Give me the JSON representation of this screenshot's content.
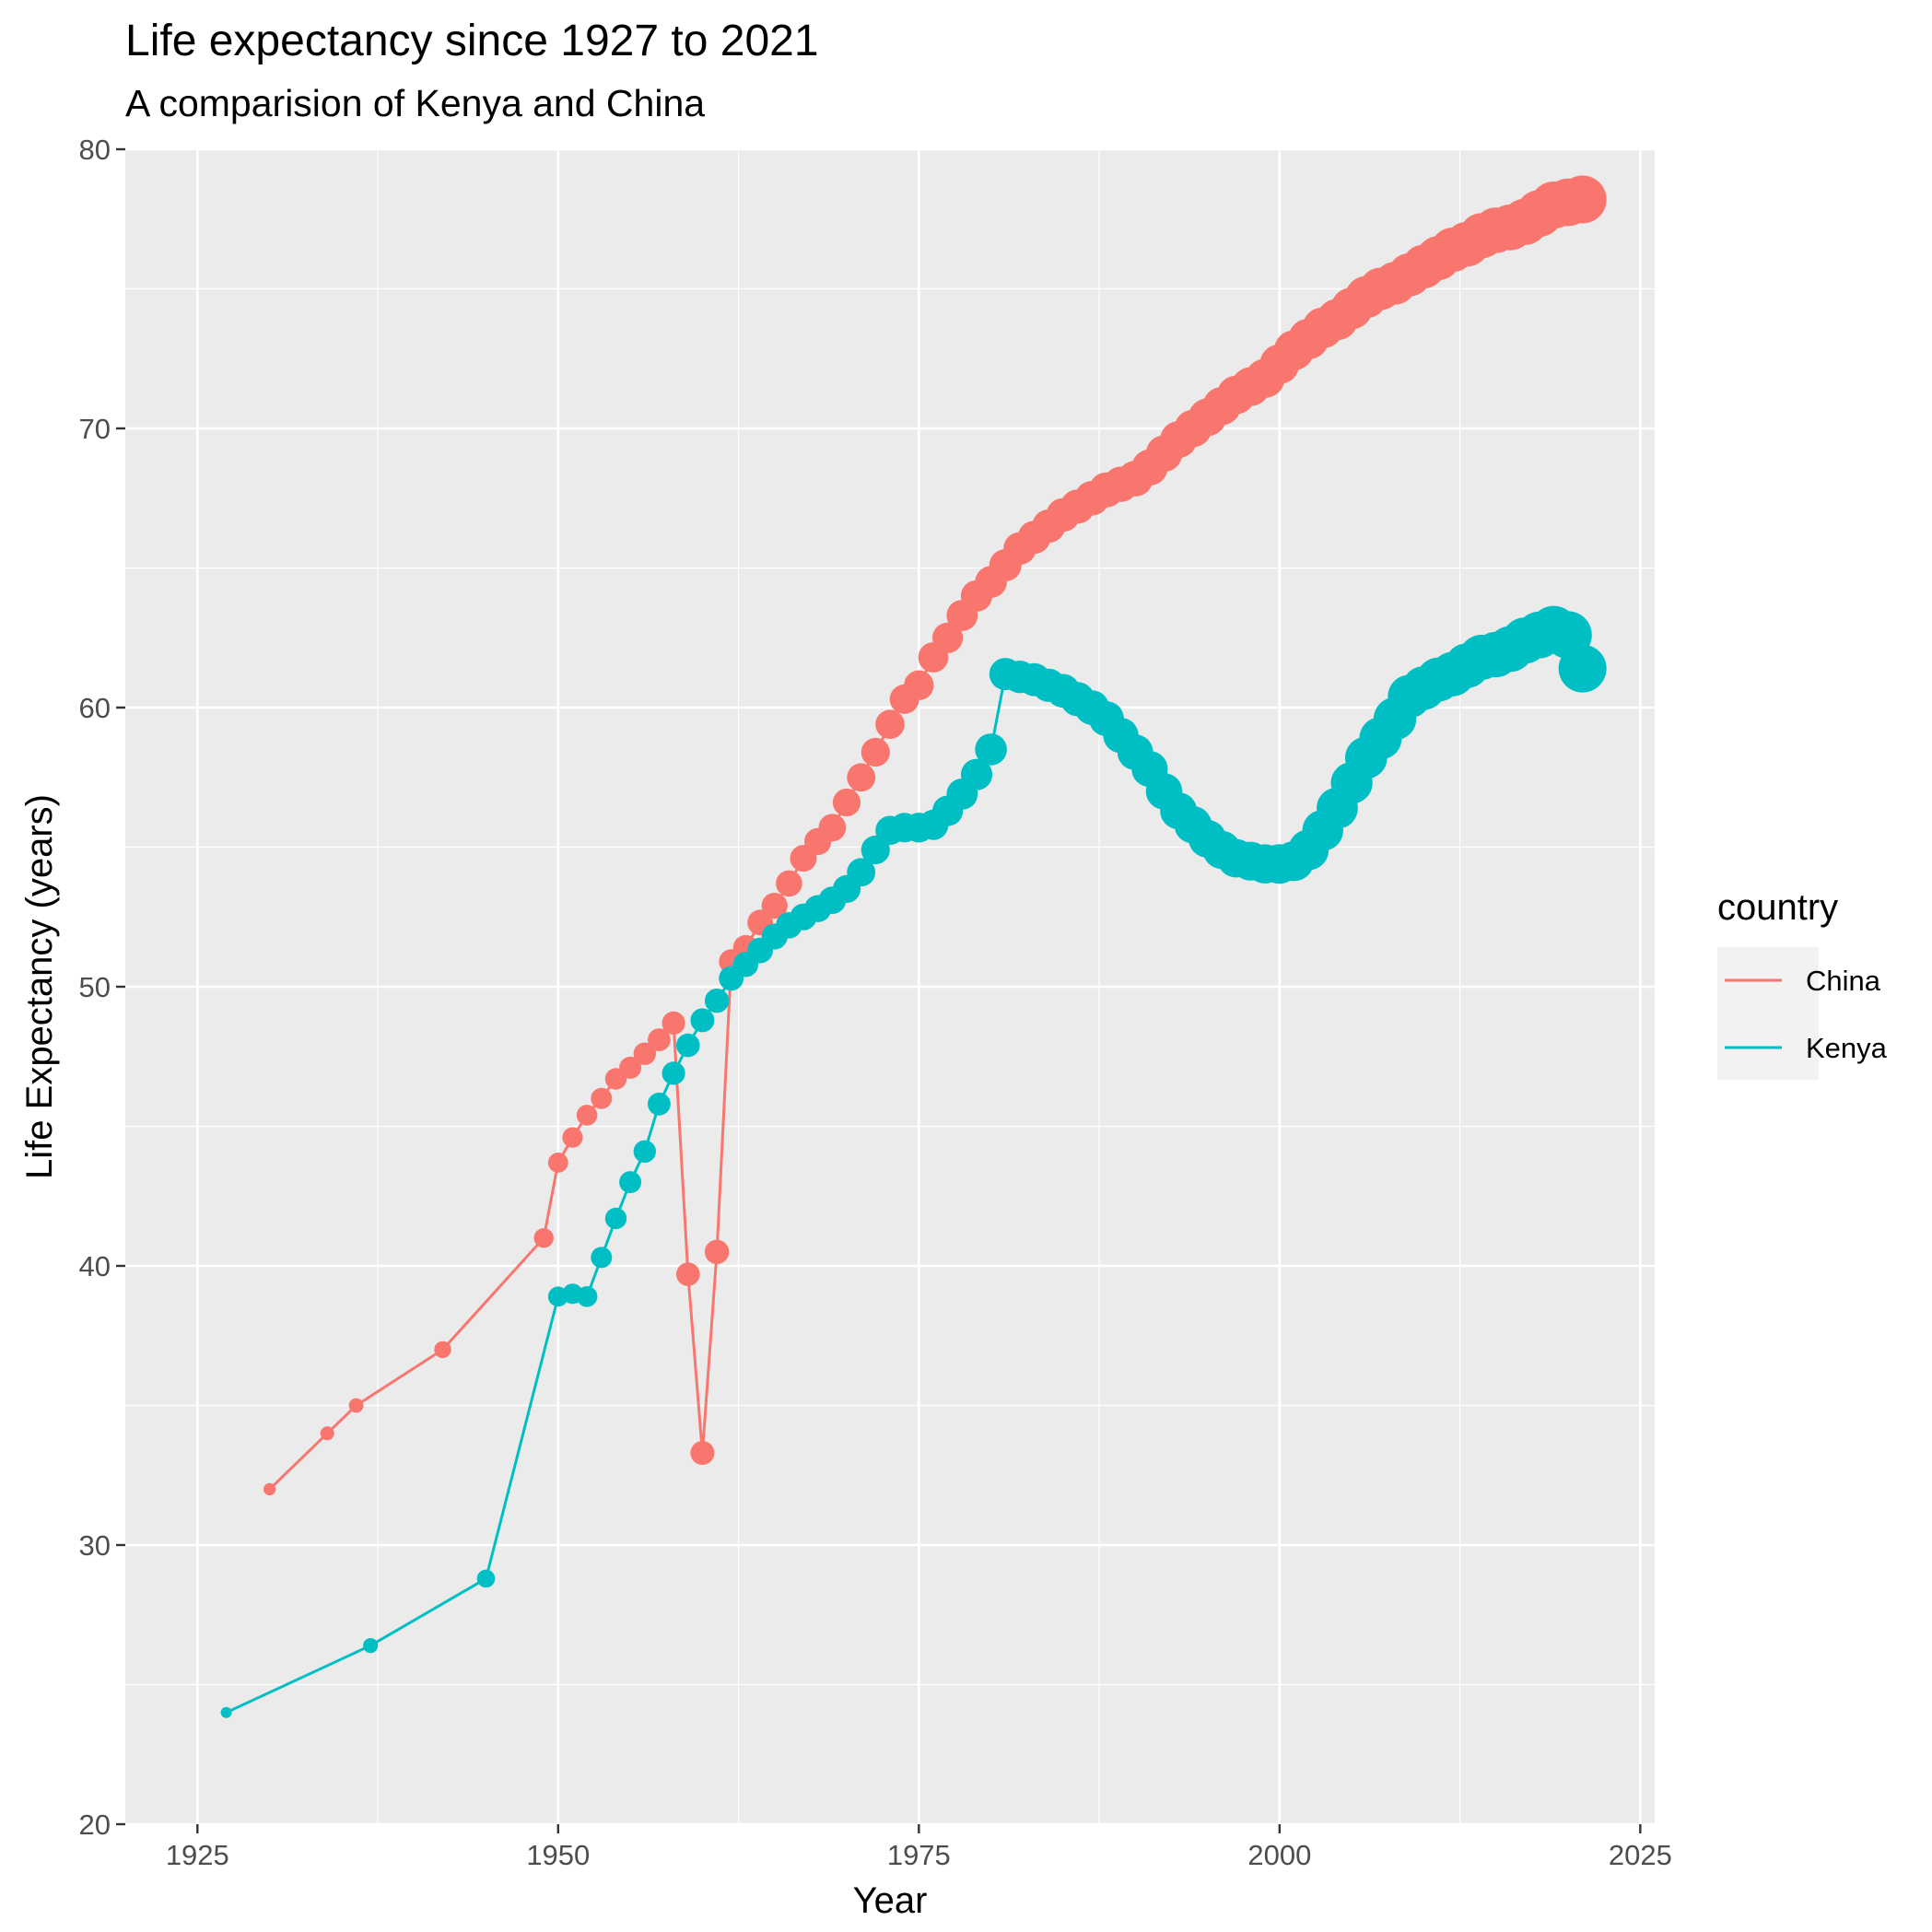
{
  "chart_data": {
    "type": "line",
    "title": "Life expectancy since 1927 to 2021",
    "subtitle": "A comparision of Kenya and China",
    "xlabel": "Year",
    "ylabel": "Life Expectancy (years)",
    "xlim": [
      1920,
      2026
    ],
    "ylim": [
      20,
      80
    ],
    "x_ticks": [
      1925,
      1950,
      1975,
      2000,
      2025
    ],
    "y_ticks": [
      20,
      30,
      40,
      50,
      60,
      70,
      80
    ],
    "grid": true,
    "point_size_encodes": "year",
    "legend": {
      "title": "country",
      "position": "right"
    },
    "series": [
      {
        "name": "China",
        "color": "#F8766D",
        "x": [
          1930,
          1934,
          1936,
          1942,
          1949,
          1950,
          1951,
          1952,
          1953,
          1954,
          1955,
          1956,
          1957,
          1958,
          1959,
          1960,
          1961,
          1962,
          1963,
          1964,
          1965,
          1966,
          1967,
          1968,
          1969,
          1970,
          1971,
          1972,
          1973,
          1974,
          1975,
          1976,
          1977,
          1978,
          1979,
          1980,
          1981,
          1982,
          1983,
          1984,
          1985,
          1986,
          1987,
          1988,
          1989,
          1990,
          1991,
          1992,
          1993,
          1994,
          1995,
          1996,
          1997,
          1998,
          1999,
          2000,
          2001,
          2002,
          2003,
          2004,
          2005,
          2006,
          2007,
          2008,
          2009,
          2010,
          2011,
          2012,
          2013,
          2014,
          2015,
          2016,
          2017,
          2018,
          2019,
          2020,
          2021
        ],
        "y": [
          32.0,
          34.0,
          35.0,
          37.0,
          41.0,
          43.7,
          44.6,
          45.4,
          46.0,
          46.7,
          47.1,
          47.6,
          48.1,
          48.7,
          39.7,
          33.3,
          40.5,
          50.9,
          51.4,
          52.3,
          52.9,
          53.7,
          54.6,
          55.2,
          55.7,
          56.6,
          57.5,
          58.4,
          59.4,
          60.3,
          60.8,
          61.8,
          62.5,
          63.3,
          64.0,
          64.5,
          65.1,
          65.7,
          66.1,
          66.5,
          66.9,
          67.2,
          67.5,
          67.8,
          68.0,
          68.2,
          68.6,
          69.1,
          69.6,
          70.0,
          70.4,
          70.8,
          71.2,
          71.5,
          71.8,
          72.3,
          72.8,
          73.2,
          73.6,
          73.9,
          74.3,
          74.7,
          75.0,
          75.2,
          75.5,
          75.8,
          76.1,
          76.4,
          76.6,
          76.9,
          77.1,
          77.2,
          77.4,
          77.7,
          78.0,
          78.1,
          78.2
        ]
      },
      {
        "name": "Kenya",
        "color": "#00BFC4",
        "x": [
          1927,
          1937,
          1945,
          1950,
          1951,
          1952,
          1953,
          1954,
          1955,
          1956,
          1957,
          1958,
          1959,
          1960,
          1961,
          1962,
          1963,
          1964,
          1965,
          1966,
          1967,
          1968,
          1969,
          1970,
          1971,
          1972,
          1973,
          1974,
          1975,
          1976,
          1977,
          1978,
          1979,
          1980,
          1981,
          1982,
          1983,
          1984,
          1985,
          1986,
          1987,
          1988,
          1989,
          1990,
          1991,
          1992,
          1993,
          1994,
          1995,
          1996,
          1997,
          1998,
          1999,
          2000,
          2001,
          2002,
          2003,
          2004,
          2005,
          2006,
          2007,
          2008,
          2009,
          2010,
          2011,
          2012,
          2013,
          2014,
          2015,
          2016,
          2017,
          2018,
          2019,
          2020,
          2021
        ],
        "y": [
          24.0,
          26.4,
          28.8,
          38.9,
          39.0,
          38.9,
          40.3,
          41.7,
          43.0,
          44.1,
          45.8,
          46.9,
          47.9,
          48.8,
          49.5,
          50.3,
          50.8,
          51.3,
          51.8,
          52.2,
          52.5,
          52.8,
          53.1,
          53.5,
          54.1,
          54.9,
          55.6,
          55.7,
          55.7,
          55.8,
          56.3,
          56.9,
          57.6,
          58.5,
          61.2,
          61.1,
          61.0,
          60.8,
          60.6,
          60.3,
          60.0,
          59.6,
          59.0,
          58.4,
          57.8,
          57.0,
          56.3,
          55.8,
          55.3,
          54.9,
          54.6,
          54.5,
          54.4,
          54.4,
          54.5,
          54.9,
          55.6,
          56.4,
          57.3,
          58.2,
          58.9,
          59.6,
          60.4,
          60.7,
          61.0,
          61.2,
          61.5,
          61.8,
          61.9,
          62.1,
          62.4,
          62.6,
          62.8,
          62.6,
          61.4
        ]
      }
    ]
  }
}
